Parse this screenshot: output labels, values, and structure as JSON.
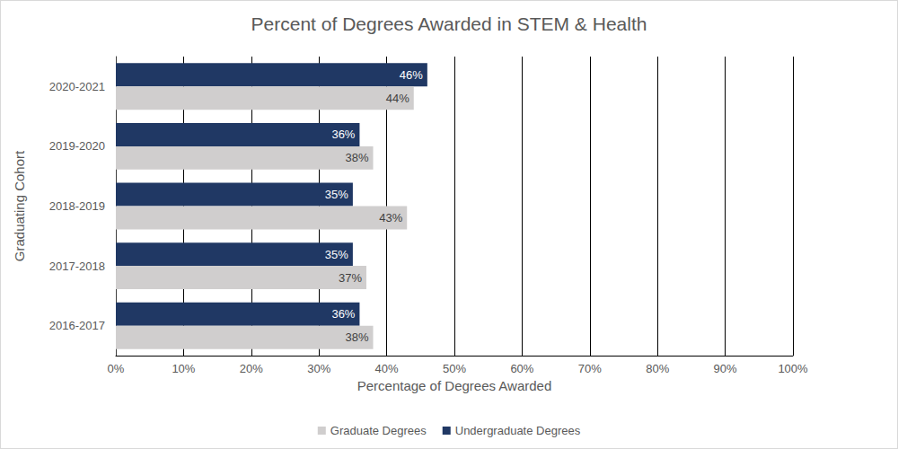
{
  "chart_data": {
    "type": "bar",
    "orientation": "horizontal",
    "title": "Percent of Degrees Awarded in STEM & Health",
    "x_label": "Percentage of Degrees Awarded",
    "y_label": "Graduating Cohort",
    "categories": [
      "2016-2017",
      "2017-2018",
      "2018-2019",
      "2019-2020",
      "2020-2021"
    ],
    "series": [
      {
        "name": "Graduate Degrees",
        "color": "#d0cece",
        "values": [
          38,
          37,
          43,
          38,
          44
        ],
        "value_labels": [
          "38%",
          "37%",
          "43%",
          "38%",
          "44%"
        ]
      },
      {
        "name": "Undergraduate Degrees",
        "color": "#203864",
        "values": [
          36,
          35,
          35,
          36,
          46
        ],
        "value_labels": [
          "36%",
          "35%",
          "35%",
          "36%",
          "46%"
        ]
      }
    ],
    "xlim": [
      0,
      100
    ],
    "xticks": [
      {
        "value": 0,
        "label": "0%"
      },
      {
        "value": 10,
        "label": "10%"
      },
      {
        "value": 20,
        "label": "20%"
      },
      {
        "value": 30,
        "label": "30%"
      },
      {
        "value": 40,
        "label": "40%"
      },
      {
        "value": 50,
        "label": "50%"
      },
      {
        "value": 60,
        "label": "60%"
      },
      {
        "value": 70,
        "label": "70%"
      },
      {
        "value": 80,
        "label": "80%"
      },
      {
        "value": 90,
        "label": "90%"
      },
      {
        "value": 100,
        "label": "100%"
      }
    ],
    "grid": true,
    "legend": "bottom",
    "data_labels": true
  }
}
